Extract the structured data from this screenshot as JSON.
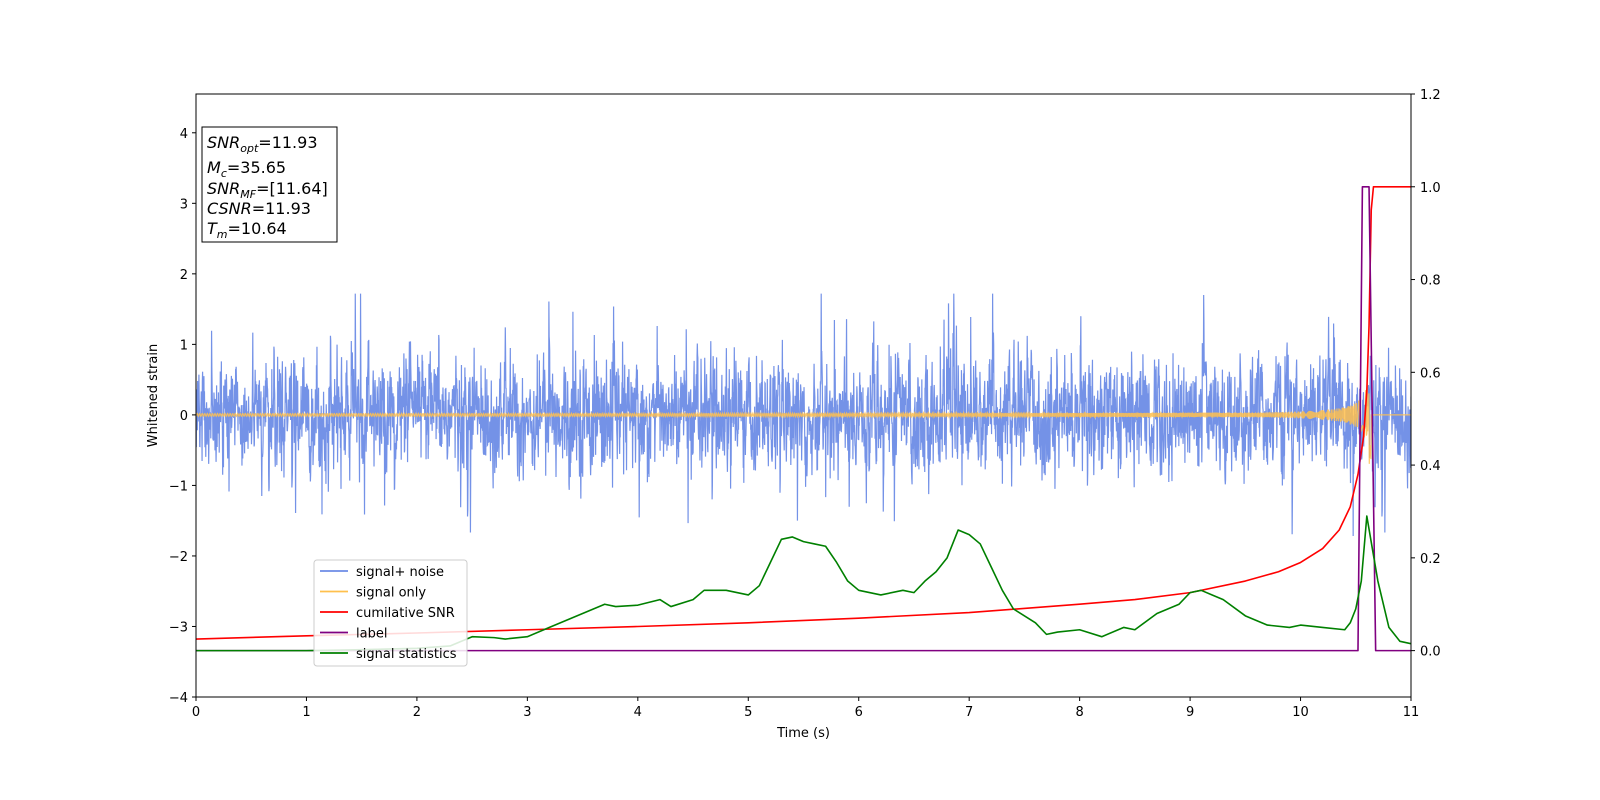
{
  "chart_data": {
    "type": "line",
    "title": "",
    "xlabel": "Time (s)",
    "ylabel": "Whitened strain",
    "y2label": "",
    "xlim": [
      0,
      11
    ],
    "ylim": [
      -4,
      4.55
    ],
    "y2lim": [
      -0.1,
      1.2
    ],
    "x_ticks": [
      0,
      1,
      2,
      3,
      4,
      5,
      6,
      7,
      8,
      9,
      10,
      11
    ],
    "y_ticks": [
      -4,
      -3,
      -2,
      -1,
      0,
      1,
      2,
      3,
      4
    ],
    "y2_ticks": [
      "0.0",
      "0.2",
      "0.4",
      "0.6",
      "0.8",
      "1.0",
      "1.2"
    ],
    "grid": false,
    "legend_position": "lower-left",
    "colors": {
      "signal_noise": "#6d8ce6",
      "signal_only": "#ffc04d",
      "cumulative_snr": "#ff0000",
      "label": "#800080",
      "signal_statistics": "#008000"
    },
    "annotation": {
      "snr_opt": {
        "var": "SNR",
        "sub": "opt",
        "value": "=11.93"
      },
      "mc": {
        "var": "M",
        "sub": "c",
        "value": "=35.65"
      },
      "snr_mf": {
        "var": "SNR",
        "sub": "MF",
        "value": "=[11.64]"
      },
      "csnr": {
        "var": "CSNR",
        "value": "=11.93"
      },
      "tm": {
        "var": "T",
        "sub": "m",
        "value": "=10.64"
      }
    },
    "series": [
      {
        "name": "signal+ noise",
        "axis": "left",
        "description_note": "whitened strain noise band, roughly +/-1.2 with spikes to ~1.7",
        "amplitude": 1.0
      },
      {
        "name": "signal only",
        "axis": "left",
        "chirp_end_time": 10.64,
        "chirp_peak_amplitude": 1.4
      },
      {
        "name": "cumilative SNR",
        "axis": "right",
        "x": [
          0,
          1,
          2,
          3,
          4,
          5,
          6,
          7,
          8,
          8.5,
          9,
          9.5,
          9.8,
          10,
          10.2,
          10.35,
          10.45,
          10.52,
          10.57,
          10.6,
          10.62,
          10.64,
          10.66,
          11
        ],
        "values": [
          0.025,
          0.032,
          0.038,
          0.045,
          0.052,
          0.06,
          0.07,
          0.082,
          0.1,
          0.11,
          0.125,
          0.15,
          0.17,
          0.19,
          0.22,
          0.26,
          0.31,
          0.38,
          0.46,
          0.56,
          0.7,
          0.95,
          1.0,
          1.0
        ]
      },
      {
        "name": "label",
        "axis": "right",
        "x": [
          0,
          10.52,
          10.56,
          10.62,
          10.68,
          11
        ],
        "values": [
          0.0,
          0.0,
          1.0,
          1.0,
          0.0,
          0.0
        ]
      },
      {
        "name": "signal statistics",
        "axis": "right",
        "x": [
          0,
          0.5,
          1,
          1.5,
          2,
          2.3,
          2.5,
          2.7,
          2.8,
          3,
          3.2,
          3.4,
          3.6,
          3.7,
          3.8,
          4,
          4.2,
          4.3,
          4.5,
          4.6,
          4.8,
          5,
          5.1,
          5.2,
          5.3,
          5.4,
          5.5,
          5.6,
          5.7,
          5.8,
          5.9,
          6,
          6.2,
          6.4,
          6.5,
          6.6,
          6.7,
          6.8,
          6.9,
          7,
          7.1,
          7.2,
          7.3,
          7.4,
          7.6,
          7.7,
          7.8,
          8,
          8.2,
          8.4,
          8.5,
          8.7,
          8.9,
          9,
          9.1,
          9.2,
          9.3,
          9.5,
          9.7,
          9.9,
          10,
          10.2,
          10.4,
          10.45,
          10.5,
          10.55,
          10.6,
          10.65,
          10.7,
          10.8,
          10.9,
          11
        ],
        "values": [
          0.0,
          0.0,
          0.0,
          0.002,
          0.005,
          0.01,
          0.03,
          0.028,
          0.025,
          0.03,
          0.05,
          0.07,
          0.09,
          0.1,
          0.095,
          0.098,
          0.11,
          0.095,
          0.11,
          0.13,
          0.13,
          0.12,
          0.14,
          0.19,
          0.24,
          0.245,
          0.235,
          0.23,
          0.225,
          0.19,
          0.15,
          0.13,
          0.12,
          0.13,
          0.125,
          0.15,
          0.17,
          0.2,
          0.26,
          0.25,
          0.23,
          0.18,
          0.13,
          0.09,
          0.06,
          0.035,
          0.04,
          0.045,
          0.03,
          0.05,
          0.045,
          0.08,
          0.1,
          0.125,
          0.13,
          0.12,
          0.11,
          0.075,
          0.055,
          0.05,
          0.055,
          0.05,
          0.045,
          0.06,
          0.09,
          0.15,
          0.29,
          0.22,
          0.15,
          0.05,
          0.02,
          0.015
        ]
      }
    ]
  }
}
